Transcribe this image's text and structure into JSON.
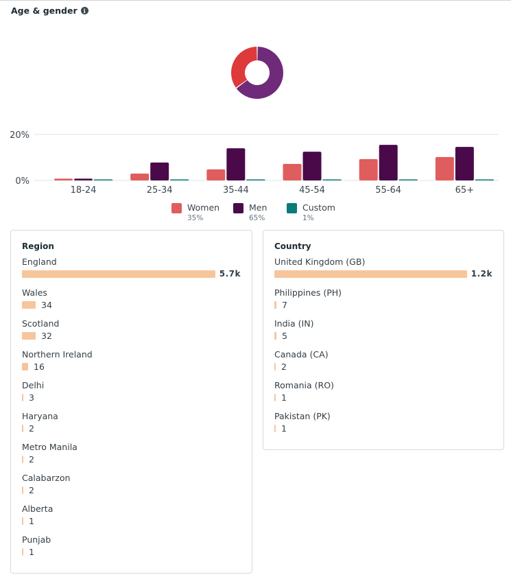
{
  "section": {
    "title": "Age & gender",
    "info_icon": "info-icon"
  },
  "colors": {
    "women": "#e05d5d",
    "men": "#4a0a4a",
    "custom": "#0b7a7a",
    "donut_women": "#dd3b3b",
    "donut_men": "#6f2a7a",
    "bar_fill": "#f7c59c"
  },
  "legend": [
    {
      "label": "Women",
      "pct": "35%",
      "color_key": "women"
    },
    {
      "label": "Men",
      "pct": "65%",
      "color_key": "men"
    },
    {
      "label": "Custom",
      "pct": "1%",
      "color_key": "custom"
    }
  ],
  "chart_data": [
    {
      "type": "pie",
      "title": "Age & gender",
      "variant": "donut",
      "labels": [
        "Women",
        "Men",
        "Custom"
      ],
      "values": [
        35,
        65,
        1
      ]
    },
    {
      "type": "bar",
      "categories": [
        "18-24",
        "25-34",
        "35-44",
        "45-54",
        "55-64",
        "65+"
      ],
      "series": [
        {
          "name": "Women",
          "values": [
            0.8,
            3.0,
            4.8,
            7.2,
            9.3,
            10.2
          ]
        },
        {
          "name": "Men",
          "values": [
            0.8,
            7.8,
            14.0,
            12.5,
            15.5,
            14.6
          ]
        },
        {
          "name": "Custom",
          "values": [
            0.1,
            0.1,
            0.1,
            0.1,
            0.1,
            0.1
          ]
        }
      ],
      "ylim": [
        0,
        20
      ],
      "yticks": [
        "0%",
        "20%"
      ],
      "ytick_values": [
        0,
        20
      ],
      "xlabel": "",
      "ylabel": "",
      "grid": true,
      "legend_position": "bottom-center"
    }
  ],
  "region": {
    "title": "Region",
    "items": [
      {
        "label": "England",
        "value": "5.7k",
        "num": 5700
      },
      {
        "label": "Wales",
        "value": "34",
        "num": 34
      },
      {
        "label": "Scotland",
        "value": "32",
        "num": 32
      },
      {
        "label": "Northern Ireland",
        "value": "16",
        "num": 16
      },
      {
        "label": "Delhi",
        "value": "3",
        "num": 3
      },
      {
        "label": "Haryana",
        "value": "2",
        "num": 2
      },
      {
        "label": "Metro Manila",
        "value": "2",
        "num": 2
      },
      {
        "label": "Calabarzon",
        "value": "2",
        "num": 2
      },
      {
        "label": "Alberta",
        "value": "1",
        "num": 1
      },
      {
        "label": "Punjab",
        "value": "1",
        "num": 1
      }
    ]
  },
  "country": {
    "title": "Country",
    "items": [
      {
        "label": "United Kingdom (GB)",
        "value": "1.2k",
        "num": 1200
      },
      {
        "label": "Philippines (PH)",
        "value": "7",
        "num": 7
      },
      {
        "label": "India (IN)",
        "value": "5",
        "num": 5
      },
      {
        "label": "Canada (CA)",
        "value": "2",
        "num": 2
      },
      {
        "label": "Romania (RO)",
        "value": "1",
        "num": 1
      },
      {
        "label": "Pakistan (PK)",
        "value": "1",
        "num": 1
      }
    ]
  }
}
